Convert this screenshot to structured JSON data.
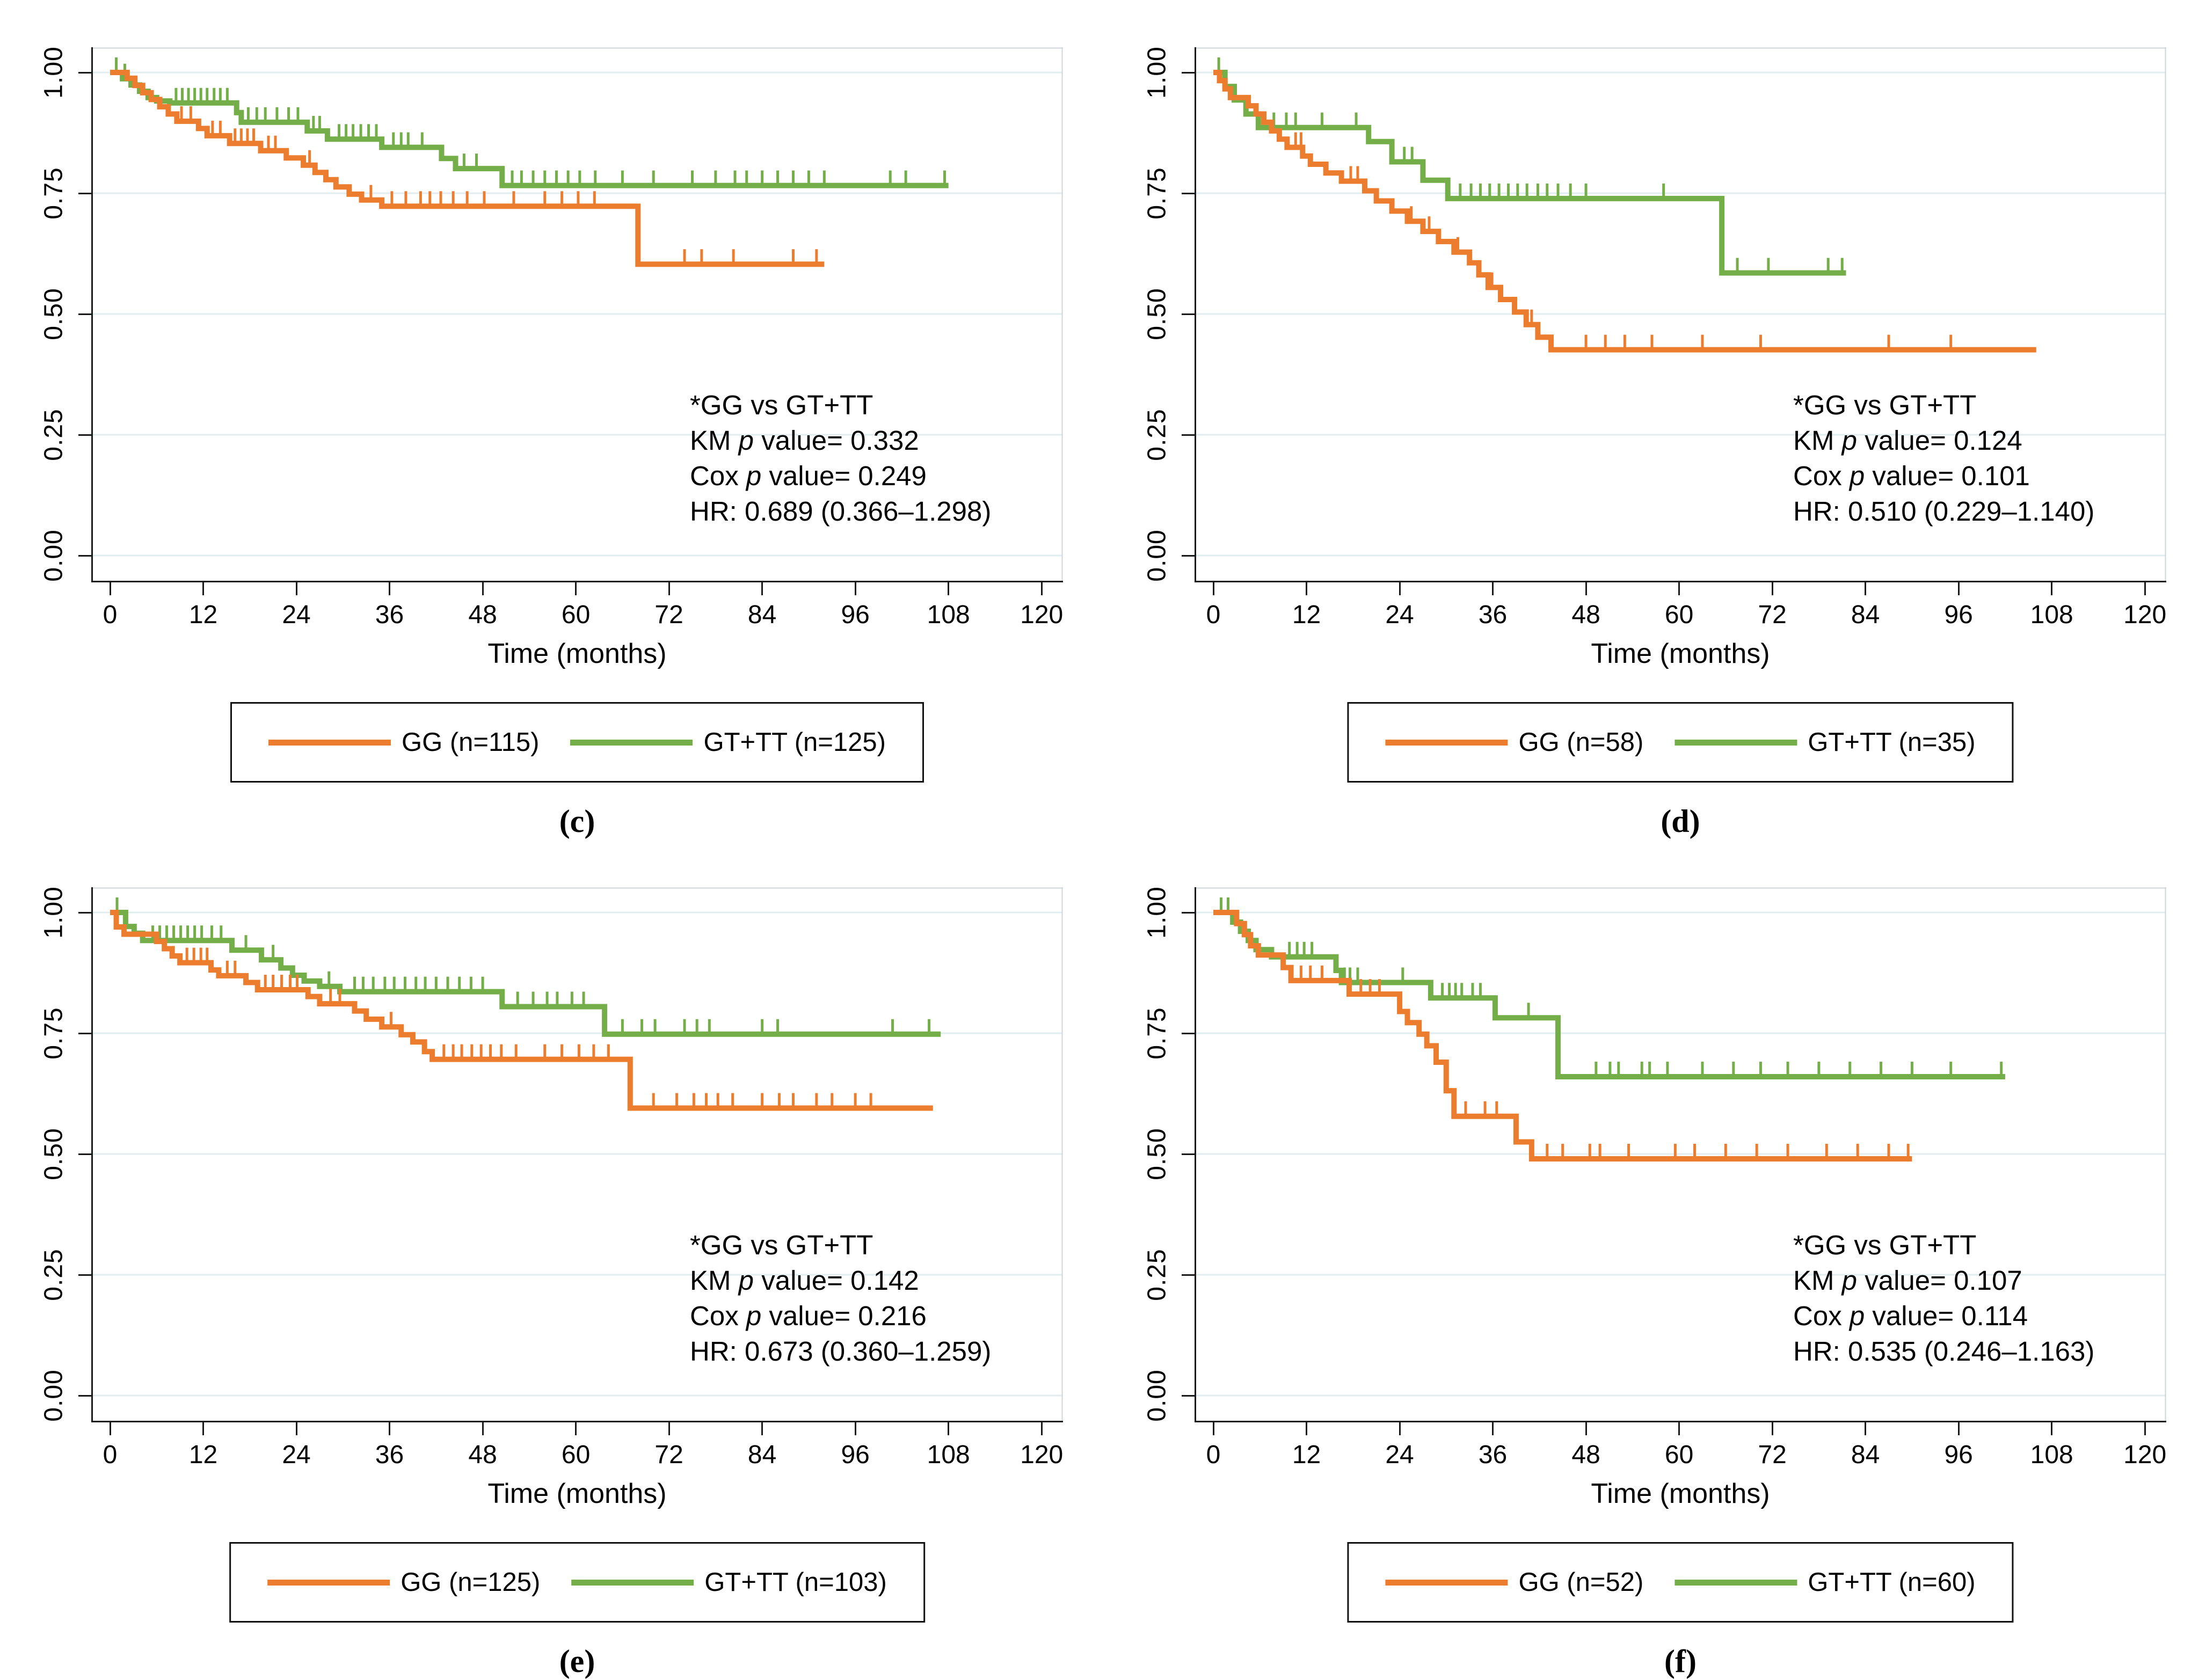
{
  "figure": {
    "xlabel": "Time (months)",
    "x_ticks": [
      0,
      12,
      24,
      36,
      48,
      60,
      72,
      84,
      96,
      108,
      120
    ],
    "y_ticks": [
      {
        "v": 0.0,
        "label": "0.00"
      },
      {
        "v": 0.25,
        "label": "0.25"
      },
      {
        "v": 0.5,
        "label": "0.50"
      },
      {
        "v": 0.75,
        "label": "0.75"
      },
      {
        "v": 1.0,
        "label": "1.00"
      }
    ]
  },
  "colors": {
    "gg": "#EC7D2E",
    "gt_tt": "#74AE48",
    "grid": "#E2EDF0",
    "axis": "#1a1a1a",
    "frame": "#cdd6d9"
  },
  "chart_data": [
    {
      "type": "line",
      "subtype": "kaplan-meier-step",
      "panel_label": "(c)",
      "xlabel": "Time (months)",
      "xlim": [
        0,
        120
      ],
      "ylim": [
        0.0,
        1.0
      ],
      "grid": "horizontal",
      "legend_position": "bottom",
      "annotation": {
        "title": "*GG vs GT+TT",
        "km": {
          "pre": "KM ",
          "p": "p",
          "post": " value= 0.332"
        },
        "cox": {
          "pre": "Cox ",
          "p": "p",
          "post": " value= 0.249"
        },
        "hr": "HR: 0.689 (0.366–1.298)"
      },
      "series": [
        {
          "name": "GT+TT (n=125)",
          "color_key": "gt_tt",
          "end": 108,
          "steps": [
            [
              0,
              1
            ],
            [
              1.6,
              0.987
            ],
            [
              2.7,
              0.974
            ],
            [
              3.8,
              0.961
            ],
            [
              4.9,
              0.948
            ],
            [
              6,
              0.941
            ],
            [
              7.7,
              0.937
            ],
            [
              16.3,
              0.917
            ],
            [
              16.9,
              0.897
            ],
            [
              25.4,
              0.879
            ],
            [
              28,
              0.862
            ],
            [
              35,
              0.845
            ],
            [
              42.7,
              0.822
            ],
            [
              44.5,
              0.801
            ],
            [
              50.5,
              0.766
            ]
          ],
          "censors": [
            0.8,
            1.9,
            8.5,
            9.3,
            10.1,
            10.9,
            11.7,
            12.5,
            13.4,
            14.2,
            15.1,
            17.8,
            18.9,
            20,
            21.5,
            23,
            24.2,
            26.2,
            27,
            29.5,
            30.4,
            31.3,
            32.3,
            33.3,
            34.3,
            36.5,
            37.5,
            38.4,
            40.2,
            45.6,
            47.2,
            51.8,
            53,
            54.5,
            56,
            57.5,
            59,
            60.5,
            62.5,
            66,
            70,
            75,
            78,
            80.5,
            82,
            84,
            86,
            88,
            90,
            92,
            100.5,
            102.5,
            107.5
          ]
        },
        {
          "name": "GG (n=115)",
          "color_key": "gg",
          "end": 92,
          "steps": [
            [
              0,
              1
            ],
            [
              2.2,
              0.988
            ],
            [
              3.2,
              0.973
            ],
            [
              4.2,
              0.958
            ],
            [
              5.3,
              0.944
            ],
            [
              6.4,
              0.929
            ],
            [
              7.5,
              0.914
            ],
            [
              8.6,
              0.899
            ],
            [
              11.4,
              0.884
            ],
            [
              12.5,
              0.869
            ],
            [
              15.4,
              0.853
            ],
            [
              19.4,
              0.838
            ],
            [
              22.7,
              0.823
            ],
            [
              24.9,
              0.808
            ],
            [
              26.4,
              0.793
            ],
            [
              27.8,
              0.778
            ],
            [
              29.1,
              0.763
            ],
            [
              30.8,
              0.748
            ],
            [
              32.4,
              0.736
            ],
            [
              35,
              0.723
            ],
            [
              68,
              0.603
            ]
          ],
          "censors": [
            9.2,
            10.4,
            13.2,
            14.2,
            16.1,
            16.9,
            17.7,
            18.5,
            20.4,
            21.3,
            25.7,
            33.6,
            36.3,
            38.1,
            40,
            41.2,
            42.6,
            44.2,
            46,
            48.2,
            52,
            56,
            58.2,
            60.3,
            62.4,
            74,
            76.2,
            80.3,
            88,
            91
          ]
        }
      ],
      "legend": [
        {
          "label": "GG (n=115)",
          "color_key": "gg"
        },
        {
          "label": "GT+TT (n=125)",
          "color_key": "gt_tt"
        }
      ]
    },
    {
      "type": "line",
      "subtype": "kaplan-meier-step",
      "panel_label": "(d)",
      "xlabel": "Time (months)",
      "xlim": [
        0,
        120
      ],
      "ylim": [
        0.0,
        1.0
      ],
      "grid": "horizontal",
      "legend_position": "bottom",
      "annotation": {
        "title": "*GG vs GT+TT",
        "km": {
          "pre": "KM ",
          "p": "p",
          "post": " value= 0.124"
        },
        "cox": {
          "pre": "Cox ",
          "p": "p",
          "post": " value= 0.101"
        },
        "hr": "HR: 0.510 (0.229–1.140)"
      },
      "series": [
        {
          "name": "GT+TT (n=35)",
          "color_key": "gt_tt",
          "end": 81.5,
          "steps": [
            [
              0,
              1
            ],
            [
              1.5,
              0.971
            ],
            [
              2.7,
              0.943
            ],
            [
              4.2,
              0.914
            ],
            [
              5.8,
              0.886
            ],
            [
              20,
              0.857
            ],
            [
              23,
              0.815
            ],
            [
              27,
              0.777
            ],
            [
              30.2,
              0.739
            ],
            [
              65.5,
              0.585
            ]
          ],
          "censors": [
            0.7,
            7.8,
            9.4,
            10.6,
            14,
            18.4,
            24.6,
            25.6,
            31.8,
            33.2,
            34.4,
            35.6,
            36.8,
            38,
            39.2,
            40.4,
            41.8,
            43,
            44.4,
            46,
            48,
            58,
            67.5,
            71.5,
            79.2,
            81
          ]
        },
        {
          "name": "GG (n=58)",
          "color_key": "gg",
          "end": 106,
          "steps": [
            [
              0,
              1
            ],
            [
              0.8,
              0.983
            ],
            [
              1.5,
              0.966
            ],
            [
              2.2,
              0.948
            ],
            [
              4.5,
              0.931
            ],
            [
              5.5,
              0.914
            ],
            [
              6.5,
              0.897
            ],
            [
              7.5,
              0.879
            ],
            [
              8.5,
              0.862
            ],
            [
              9.5,
              0.845
            ],
            [
              11.5,
              0.827
            ],
            [
              12.5,
              0.81
            ],
            [
              14.5,
              0.792
            ],
            [
              16.5,
              0.775
            ],
            [
              19.5,
              0.755
            ],
            [
              21,
              0.734
            ],
            [
              23,
              0.713
            ],
            [
              25,
              0.692
            ],
            [
              27,
              0.671
            ],
            [
              29,
              0.65
            ],
            [
              31,
              0.628
            ],
            [
              33,
              0.606
            ],
            [
              34.2,
              0.581
            ],
            [
              35.4,
              0.555
            ],
            [
              37,
              0.53
            ],
            [
              38.8,
              0.504
            ],
            [
              40.3,
              0.478
            ],
            [
              41.8,
              0.452
            ],
            [
              43.5,
              0.426
            ]
          ],
          "censors": [
            10.6,
            11.3,
            17.7,
            18.6,
            25.5,
            27.8,
            31.5,
            35.9,
            41,
            48,
            50.5,
            53,
            56.5,
            63,
            70.5,
            87,
            95
          ]
        }
      ],
      "legend": [
        {
          "label": "GG (n=58)",
          "color_key": "gg"
        },
        {
          "label": "GT+TT (n=35)",
          "color_key": "gt_tt"
        }
      ]
    },
    {
      "type": "line",
      "subtype": "kaplan-meier-step",
      "panel_label": "(e)",
      "xlabel": "Time (months)",
      "xlim": [
        0,
        120
      ],
      "ylim": [
        0.0,
        1.0
      ],
      "grid": "horizontal",
      "legend_position": "bottom",
      "annotation": {
        "title": "*GG vs GT+TT",
        "km": {
          "pre": "KM ",
          "p": "p",
          "post": " value= 0.142"
        },
        "cox": {
          "pre": "Cox ",
          "p": "p",
          "post": " value= 0.216"
        },
        "hr": "HR: 0.673 (0.360–1.259)"
      },
      "series": [
        {
          "name": "GT+TT (n=103)",
          "color_key": "gt_tt",
          "end": 107,
          "steps": [
            [
              0,
              1
            ],
            [
              2,
              0.971
            ],
            [
              3.1,
              0.957
            ],
            [
              4.2,
              0.942
            ],
            [
              15.7,
              0.922
            ],
            [
              19.5,
              0.902
            ],
            [
              22,
              0.885
            ],
            [
              23.5,
              0.87
            ],
            [
              25,
              0.858
            ],
            [
              27,
              0.847
            ],
            [
              29.6,
              0.836
            ],
            [
              50.5,
              0.805
            ],
            [
              63.7,
              0.748
            ]
          ],
          "censors": [
            0.9,
            5.5,
            6.4,
            7.3,
            8.2,
            9.1,
            10,
            10.9,
            11.8,
            13.1,
            14.3,
            17.5,
            21,
            28.2,
            31.5,
            32.6,
            33.9,
            35.4,
            36.6,
            38,
            39.4,
            40.6,
            42,
            43.5,
            45,
            46.5,
            48,
            52.5,
            54.5,
            56.3,
            57.6,
            59.5,
            61,
            66,
            68.5,
            70.2,
            74,
            75.6,
            77.2,
            84,
            86,
            100.8,
            105.5
          ]
        },
        {
          "name": "GG (n=125)",
          "color_key": "gg",
          "end": 106,
          "steps": [
            [
              0,
              1
            ],
            [
              0.8,
              0.97
            ],
            [
              1.8,
              0.955
            ],
            [
              6,
              0.94
            ],
            [
              7,
              0.925
            ],
            [
              8,
              0.91
            ],
            [
              9,
              0.896
            ],
            [
              13,
              0.881
            ],
            [
              14,
              0.869
            ],
            [
              17.5,
              0.855
            ],
            [
              19,
              0.84
            ],
            [
              25.5,
              0.826
            ],
            [
              27,
              0.811
            ],
            [
              31.5,
              0.796
            ],
            [
              33,
              0.779
            ],
            [
              35,
              0.763
            ],
            [
              37.5,
              0.747
            ],
            [
              39,
              0.732
            ],
            [
              40.5,
              0.712
            ],
            [
              41.5,
              0.696
            ],
            [
              67,
              0.595
            ]
          ],
          "censors": [
            9.9,
            10.8,
            11.7,
            12.5,
            15.1,
            16.1,
            20,
            21,
            22.1,
            23.2,
            24.1,
            28.4,
            29.6,
            36.2,
            43,
            44.2,
            45.3,
            46.6,
            47.8,
            49,
            50.4,
            52.3,
            56,
            58.2,
            60.4,
            62.3,
            64.2,
            70,
            73,
            75.2,
            76.8,
            78.3,
            80.2,
            84,
            86.2,
            88,
            91,
            93,
            96,
            98
          ]
        }
      ],
      "legend": [
        {
          "label": "GG (n=125)",
          "color_key": "gg"
        },
        {
          "label": "GT+TT (n=103)",
          "color_key": "gt_tt"
        }
      ]
    },
    {
      "type": "line",
      "subtype": "kaplan-meier-step",
      "panel_label": "(f)",
      "xlabel": "Time (months)",
      "xlim": [
        0,
        120
      ],
      "ylim": [
        0.0,
        1.0
      ],
      "grid": "horizontal",
      "legend_position": "bottom",
      "annotation": {
        "title": "*GG vs GT+TT",
        "km": {
          "pre": "KM ",
          "p": "p",
          "post": " value= 0.107"
        },
        "cox": {
          "pre": "Cox ",
          "p": "p",
          "post": " value= 0.114"
        },
        "hr": "HR: 0.535 (0.246–1.163)"
      },
      "series": [
        {
          "name": "GT+TT (n=60)",
          "color_key": "gt_tt",
          "end": 102,
          "steps": [
            [
              0,
              1
            ],
            [
              2.5,
              0.98
            ],
            [
              3.5,
              0.961
            ],
            [
              4.5,
              0.942
            ],
            [
              5.5,
              0.923
            ],
            [
              7.5,
              0.908
            ],
            [
              15.8,
              0.88
            ],
            [
              16.5,
              0.855
            ],
            [
              28,
              0.823
            ],
            [
              36.3,
              0.782
            ],
            [
              44.4,
              0.66
            ]
          ],
          "censors": [
            1,
            1.9,
            9.8,
            10.8,
            11.7,
            12.7,
            16.9,
            17.6,
            18.6,
            24.4,
            29.5,
            30.4,
            31.2,
            32,
            33.4,
            34.4,
            40.6,
            49.3,
            51.1,
            52.2,
            55.2,
            56.2,
            58.5,
            63,
            67,
            70.5,
            74,
            78,
            82,
            86,
            90,
            95,
            101.5
          ]
        },
        {
          "name": "GG (n=52)",
          "color_key": "gg",
          "end": 90,
          "steps": [
            [
              0,
              1
            ],
            [
              3,
              0.977
            ],
            [
              4,
              0.954
            ],
            [
              4.8,
              0.931
            ],
            [
              5.8,
              0.912
            ],
            [
              9,
              0.886
            ],
            [
              10,
              0.859
            ],
            [
              17.5,
              0.831
            ],
            [
              24,
              0.795
            ],
            [
              25,
              0.772
            ],
            [
              26.5,
              0.748
            ],
            [
              27.5,
              0.724
            ],
            [
              28.7,
              0.69
            ],
            [
              30,
              0.631
            ],
            [
              31,
              0.578
            ],
            [
              39,
              0.525
            ],
            [
              41,
              0.49
            ]
          ],
          "censors": [
            11.3,
            12.5,
            14,
            19,
            20.2,
            21.4,
            32.5,
            35,
            36.5,
            43,
            45,
            48.5,
            49.8,
            53.5,
            59.5,
            62,
            66,
            70,
            74,
            79,
            83,
            87,
            89.5
          ]
        }
      ],
      "legend": [
        {
          "label": "GG (n=52)",
          "color_key": "gg"
        },
        {
          "label": "GT+TT (n=60)",
          "color_key": "gt_tt"
        }
      ]
    }
  ]
}
